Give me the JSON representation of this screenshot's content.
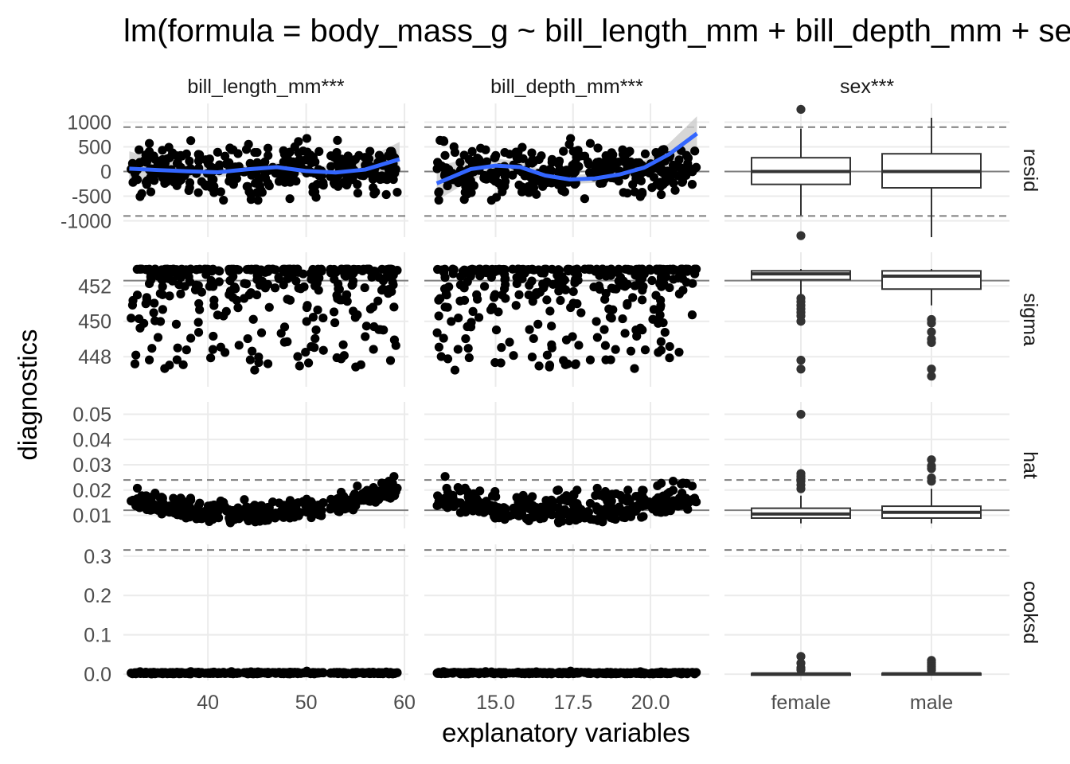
{
  "title": "lm(formula = body_mass_g ~ bill_length_mm + bill_depth_mm + sex, data = penguins)",
  "x_axis_label": "explanatory variables",
  "y_axis_label": "diagnostics",
  "chart_data": {
    "type": "scatter",
    "title": "lm(formula = body_mass_g ~ bill_length_mm + bill_depth_mm + sex, data = penguins)",
    "xlabel": "explanatory variables",
    "ylabel": "diagnostics",
    "grid": true,
    "columns": [
      {
        "key": "bill_length_mm",
        "label": "bill_length_mm***",
        "kind": "numeric",
        "xlim": [
          31.4,
          60.4
        ],
        "ticks": [
          40,
          50,
          60
        ],
        "tick_labels": [
          "40",
          "50",
          "60"
        ],
        "point_count": 333
      },
      {
        "key": "bill_depth_mm",
        "label": "bill_depth_mm***",
        "kind": "numeric",
        "xlim": [
          12.7,
          21.9
        ],
        "ticks": [
          15,
          17.5,
          20
        ],
        "tick_labels": [
          "15.0",
          "17.5",
          "20.0"
        ],
        "point_count": 333
      },
      {
        "key": "sex",
        "label": "sex***",
        "kind": "categorical",
        "categories": [
          "female",
          "male"
        ]
      }
    ],
    "rows": [
      {
        "key": "resid",
        "label": "resid",
        "ylim": [
          -1330,
          1380
        ],
        "ticks": [
          -1000,
          -500,
          0,
          500,
          1000
        ],
        "tick_labels": [
          "-1000",
          "-500",
          "0",
          "500",
          "1000"
        ],
        "reference_lines": [
          {
            "value": 0,
            "style": "solid"
          },
          {
            "value": 900,
            "style": "dashed"
          },
          {
            "value": -900,
            "style": "dashed"
          }
        ]
      },
      {
        "key": "sigma",
        "label": "sigma",
        "ylim": [
          446.3,
          453.9
        ],
        "ticks": [
          448,
          450,
          452
        ],
        "tick_labels": [
          "448",
          "450",
          "452"
        ],
        "reference_lines": [
          {
            "value": 452.3,
            "style": "solid"
          }
        ]
      },
      {
        "key": "hat",
        "label": "hat",
        "ylim": [
          0.0048,
          0.0549
        ],
        "ticks": [
          0.01,
          0.02,
          0.03,
          0.04,
          0.05
        ],
        "tick_labels": [
          "0.01",
          "0.02",
          "0.03",
          "0.04",
          "0.05"
        ],
        "reference_lines": [
          {
            "value": 0.012,
            "style": "solid"
          },
          {
            "value": 0.024,
            "style": "dashed"
          }
        ]
      },
      {
        "key": "cooksd",
        "label": "cooksd",
        "ylim": [
          -0.016,
          0.33
        ],
        "ticks": [
          0,
          0.1,
          0.2,
          0.3
        ],
        "tick_labels": [
          "0.0",
          "0.1",
          "0.2",
          "0.3"
        ],
        "reference_lines": [
          {
            "value": 0.3155,
            "style": "dashed"
          }
        ]
      }
    ],
    "smooth": {
      "bill_length_mm": {
        "x": [
          32,
          35,
          38,
          41,
          44,
          47,
          50,
          53,
          56,
          59.5
        ],
        "y": [
          60,
          30,
          5,
          -15,
          45,
          90,
          10,
          -20,
          40,
          250
        ]
      },
      "bill_depth_mm": {
        "x": [
          13.1,
          14.2,
          15,
          15.8,
          16.6,
          17.4,
          18.2,
          19,
          19.8,
          20.6,
          21.5
        ],
        "y": [
          -240,
          50,
          120,
          90,
          -80,
          -160,
          -140,
          -60,
          80,
          350,
          770
        ]
      }
    },
    "boxplots": {
      "resid": {
        "female": {
          "q1": -260,
          "median": 0,
          "q3": 280,
          "whisker_low": -890,
          "whisker_high": 870,
          "outliers": [
            1260,
            -1300
          ]
        },
        "male": {
          "q1": -330,
          "median": 0,
          "q3": 360,
          "whisker_low": -1330,
          "whisker_high": 1090,
          "outliers": []
        }
      },
      "sigma": {
        "female": {
          "q1": 452.35,
          "median": 452.68,
          "q3": 452.85,
          "whisker_low": 451.5,
          "whisker_high": 452.95,
          "outliers": [
            451.3,
            451.1,
            450.9,
            450.7,
            450.5,
            450.3,
            450.0,
            447.8,
            447.3
          ]
        },
        "male": {
          "q1": 451.82,
          "median": 452.55,
          "q3": 452.85,
          "whisker_low": 450.9,
          "whisker_high": 452.95,
          "outliers": [
            450.1,
            449.9,
            449.4,
            449.0,
            448.8,
            447.3,
            446.9
          ]
        }
      },
      "hat": {
        "female": {
          "q1": 0.0089,
          "median": 0.0105,
          "q3": 0.0128,
          "whisker_low": 0.0068,
          "whisker_high": 0.0178,
          "outliers": [
            0.0265,
            0.0255,
            0.0245,
            0.0235,
            0.022,
            0.0205,
            0.05
          ]
        },
        "male": {
          "q1": 0.0089,
          "median": 0.0112,
          "q3": 0.0136,
          "whisker_low": 0.0068,
          "whisker_high": 0.0205,
          "outliers": [
            0.032,
            0.0295,
            0.0285,
            0.0248,
            0.0235
          ]
        }
      },
      "cooksd": {
        "female": {
          "q1": 0.0003,
          "median": 0.0008,
          "q3": 0.0015,
          "whisker_low": 0,
          "whisker_high": 0.003,
          "outliers": [
            0.045,
            0.028,
            0.016,
            0.011
          ]
        },
        "male": {
          "q1": 0.0004,
          "median": 0.001,
          "q3": 0.002,
          "whisker_low": 0,
          "whisker_high": 0.004,
          "outliers": [
            0.035,
            0.029,
            0.024,
            0.019,
            0.014,
            0.01
          ]
        }
      }
    },
    "colors": {
      "points": "#000000",
      "smooth_line": "#3366FF",
      "smooth_band": "#CCCCCC",
      "grid": "#EBEBEB",
      "reference": "#7F7F7F"
    }
  }
}
